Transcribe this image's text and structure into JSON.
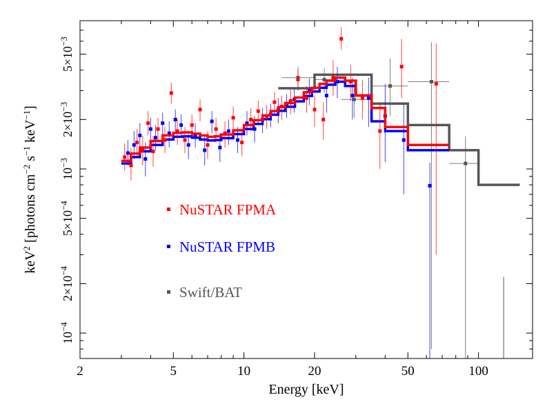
{
  "chart_data": {
    "type": "scatter",
    "title": "",
    "xlabel": "Energy [keV]",
    "ylabel_parts": [
      "keV",
      "2",
      " [photons cm",
      "−2",
      " s",
      "−1",
      " keV",
      "−1",
      "]"
    ],
    "xscale": "log",
    "yscale": "log",
    "xlim": [
      2,
      170
    ],
    "ylim": [
      7e-05,
      0.008
    ],
    "x_ticks": [
      {
        "value": 2,
        "label": "2"
      },
      {
        "value": 5,
        "label": "5"
      },
      {
        "value": 10,
        "label": "10"
      },
      {
        "value": 20,
        "label": "20"
      },
      {
        "value": 50,
        "label": "50"
      },
      {
        "value": 100,
        "label": "100"
      }
    ],
    "y_ticks": [
      {
        "value": 0.0001,
        "mant": "10",
        "exp": "−4"
      },
      {
        "value": 0.0002,
        "mant": "2×10",
        "exp": "−4"
      },
      {
        "value": 0.0005,
        "mant": "5×10",
        "exp": "−4"
      },
      {
        "value": 0.001,
        "mant": "10",
        "exp": "−3"
      },
      {
        "value": 0.002,
        "mant": "2×10",
        "exp": "−3"
      },
      {
        "value": 0.005,
        "mant": "5×10",
        "exp": "−3"
      }
    ],
    "legend_position": "middle-left",
    "series": [
      {
        "name": "NuSTAR FPMA",
        "color": "#ff0000",
        "model_step": [
          [
            3.0,
            0.00112
          ],
          [
            3.3,
            0.00124
          ],
          [
            3.6,
            0.00135
          ],
          [
            4.0,
            0.00148
          ],
          [
            4.5,
            0.0016
          ],
          [
            5.0,
            0.00166
          ],
          [
            5.5,
            0.00167
          ],
          [
            6.0,
            0.00164
          ],
          [
            6.5,
            0.0016
          ],
          [
            7.0,
            0.00157
          ],
          [
            7.5,
            0.00158
          ],
          [
            8.0,
            0.00162
          ],
          [
            9.0,
            0.00172
          ],
          [
            10.0,
            0.00185
          ],
          [
            11.0,
            0.00198
          ],
          [
            12.0,
            0.00212
          ],
          [
            13.0,
            0.00225
          ],
          [
            14.0,
            0.00238
          ],
          [
            15.0,
            0.00252
          ],
          [
            16.5,
            0.00272
          ],
          [
            18.0,
            0.00293
          ],
          [
            19.5,
            0.00312
          ],
          [
            21.0,
            0.0033
          ],
          [
            22.5,
            0.00345
          ],
          [
            24.5,
            0.0036
          ],
          [
            27.0,
            0.00345
          ],
          [
            30.0,
            0.0028
          ],
          [
            35.0,
            0.00235
          ],
          [
            40.0,
            0.0018
          ],
          [
            50.0,
            0.0014
          ],
          [
            75.0,
            0.0014
          ]
        ],
        "points": [
          {
            "x": 3.1,
            "y": 0.00118,
            "yerr": [
              0.0002,
              0.00025
            ]
          },
          {
            "x": 3.3,
            "y": 0.00105,
            "yerr": [
              0.0002,
              0.0003
            ]
          },
          {
            "x": 3.5,
            "y": 0.00145,
            "yerr": [
              0.00025,
              0.0003
            ]
          },
          {
            "x": 3.7,
            "y": 0.0013,
            "yerr": [
              0.00025,
              0.0003
            ]
          },
          {
            "x": 3.9,
            "y": 0.0019,
            "yerr": [
              0.0003,
              0.00035
            ]
          },
          {
            "x": 4.1,
            "y": 0.00128,
            "yerr": [
              0.00025,
              0.0003
            ]
          },
          {
            "x": 4.3,
            "y": 0.00175,
            "yerr": [
              0.0003,
              0.0003
            ]
          },
          {
            "x": 4.6,
            "y": 0.0015,
            "yerr": [
              0.00025,
              0.0003
            ]
          },
          {
            "x": 4.9,
            "y": 0.0029,
            "yerr": [
              0.0004,
              0.00045
            ]
          },
          {
            "x": 5.2,
            "y": 0.0017,
            "yerr": [
              0.0003,
              0.0003
            ]
          },
          {
            "x": 5.6,
            "y": 0.0015,
            "yerr": [
              0.00025,
              0.0003
            ]
          },
          {
            "x": 6.0,
            "y": 0.00185,
            "yerr": [
              0.0003,
              0.0003
            ]
          },
          {
            "x": 6.5,
            "y": 0.0023,
            "yerr": [
              0.00035,
              0.00035
            ]
          },
          {
            "x": 7.0,
            "y": 0.0014,
            "yerr": [
              0.00025,
              0.0003
            ]
          },
          {
            "x": 7.6,
            "y": 0.00175,
            "yerr": [
              0.0003,
              0.0003
            ]
          },
          {
            "x": 8.3,
            "y": 0.00165,
            "yerr": [
              0.0003,
              0.0003
            ]
          },
          {
            "x": 9.0,
            "y": 0.00205,
            "yerr": [
              0.0003,
              0.00035
            ]
          },
          {
            "x": 9.8,
            "y": 0.00145,
            "yerr": [
              0.00025,
              0.0003
            ]
          },
          {
            "x": 10.7,
            "y": 0.002,
            "yerr": [
              0.0003,
              0.00035
            ]
          },
          {
            "x": 11.5,
            "y": 0.00225,
            "yerr": [
              0.00035,
              0.00035
            ]
          },
          {
            "x": 12.5,
            "y": 0.0021,
            "yerr": [
              0.00035,
              0.00035
            ]
          },
          {
            "x": 13.5,
            "y": 0.00255,
            "yerr": [
              0.0004,
              0.0004
            ]
          },
          {
            "x": 14.5,
            "y": 0.0024,
            "yerr": [
              0.0004,
              0.0004
            ]
          },
          {
            "x": 15.8,
            "y": 0.0026,
            "yerr": [
              0.00045,
              0.00045
            ]
          },
          {
            "x": 17.0,
            "y": 0.0035,
            "yerr": [
              0.0005,
              0.00055
            ]
          },
          {
            "x": 18.5,
            "y": 0.0027,
            "yerr": [
              0.0005,
              0.0005
            ]
          },
          {
            "x": 20.0,
            "y": 0.0023,
            "yerr": [
              0.0005,
              0.0005
            ]
          },
          {
            "x": 21.8,
            "y": 0.002,
            "yerr": [
              0.0005,
              0.00055
            ]
          },
          {
            "x": 24.0,
            "y": 0.0036,
            "yerr": [
              0.0008,
              0.001
            ]
          },
          {
            "x": 26.0,
            "y": 0.0062,
            "yerr": [
              0.0009,
              0.0011
            ]
          },
          {
            "x": 28.5,
            "y": 0.0034,
            "yerr": [
              0.0008,
              0.0009
            ]
          },
          {
            "x": 32.0,
            "y": 0.0027,
            "yerr": [
              0.0007,
              0.0008
            ]
          },
          {
            "x": 38.0,
            "y": 0.0017,
            "yerr": [
              0.0007,
              0.0008
            ]
          },
          {
            "x": 47.0,
            "y": 0.0042,
            "yerr": [
              0.0015,
              0.002
            ]
          },
          {
            "x": 66.0,
            "y": 0.0033,
            "yerr": [
              0.003,
              0.0025
            ]
          }
        ]
      },
      {
        "name": "NuSTAR FPMB",
        "color": "#0000ff",
        "model_step": [
          [
            3.0,
            0.00108
          ],
          [
            3.3,
            0.00118
          ],
          [
            3.6,
            0.00128
          ],
          [
            4.0,
            0.0014
          ],
          [
            4.5,
            0.00151
          ],
          [
            5.0,
            0.00157
          ],
          [
            5.5,
            0.00158
          ],
          [
            6.0,
            0.00155
          ],
          [
            6.5,
            0.00151
          ],
          [
            7.0,
            0.00149
          ],
          [
            7.5,
            0.0015
          ],
          [
            8.0,
            0.00154
          ],
          [
            9.0,
            0.00163
          ],
          [
            10.0,
            0.00175
          ],
          [
            11.0,
            0.00188
          ],
          [
            12.0,
            0.00201
          ],
          [
            13.0,
            0.00214
          ],
          [
            14.0,
            0.00226
          ],
          [
            15.0,
            0.00239
          ],
          [
            16.5,
            0.00258
          ],
          [
            18.0,
            0.00278
          ],
          [
            19.5,
            0.00296
          ],
          [
            21.0,
            0.00312
          ],
          [
            22.5,
            0.00326
          ],
          [
            24.5,
            0.0034
          ],
          [
            27.0,
            0.0032
          ],
          [
            30.0,
            0.0028
          ],
          [
            35.0,
            0.00195
          ],
          [
            40.0,
            0.0017
          ],
          [
            50.0,
            0.0013
          ],
          [
            75.0,
            0.0013
          ]
        ],
        "points": [
          {
            "x": 3.2,
            "y": 0.00125,
            "yerr": [
              0.0002,
              0.00025
            ]
          },
          {
            "x": 3.4,
            "y": 0.0014,
            "yerr": [
              0.00025,
              0.0003
            ]
          },
          {
            "x": 3.6,
            "y": 0.0016,
            "yerr": [
              0.00025,
              0.0003
            ]
          },
          {
            "x": 3.8,
            "y": 0.00115,
            "yerr": [
              0.00025,
              0.0003
            ]
          },
          {
            "x": 4.0,
            "y": 0.00175,
            "yerr": [
              0.0003,
              0.0003
            ]
          },
          {
            "x": 4.2,
            "y": 0.00155,
            "yerr": [
              0.00025,
              0.0003
            ]
          },
          {
            "x": 4.5,
            "y": 0.0019,
            "yerr": [
              0.0003,
              0.0003
            ]
          },
          {
            "x": 4.8,
            "y": 0.00165,
            "yerr": [
              0.0003,
              0.0003
            ]
          },
          {
            "x": 5.1,
            "y": 0.002,
            "yerr": [
              0.0003,
              0.0003
            ]
          },
          {
            "x": 5.4,
            "y": 0.00185,
            "yerr": [
              0.0003,
              0.0003
            ]
          },
          {
            "x": 5.8,
            "y": 0.0014,
            "yerr": [
              0.00025,
              0.0003
            ]
          },
          {
            "x": 6.2,
            "y": 0.0016,
            "yerr": [
              0.00025,
              0.0003
            ]
          },
          {
            "x": 6.8,
            "y": 0.0013,
            "yerr": [
              0.00025,
              0.0003
            ]
          },
          {
            "x": 7.3,
            "y": 0.00195,
            "yerr": [
              0.0003,
              0.0003
            ]
          },
          {
            "x": 7.9,
            "y": 0.00135,
            "yerr": [
              0.00025,
              0.0003
            ]
          },
          {
            "x": 8.6,
            "y": 0.0017,
            "yerr": [
              0.0003,
              0.0003
            ]
          },
          {
            "x": 9.4,
            "y": 0.0015,
            "yerr": [
              0.00025,
              0.0003
            ]
          },
          {
            "x": 10.3,
            "y": 0.0019,
            "yerr": [
              0.0003,
              0.00035
            ]
          },
          {
            "x": 11.1,
            "y": 0.00175,
            "yerr": [
              0.0003,
              0.00035
            ]
          },
          {
            "x": 12.0,
            "y": 0.002,
            "yerr": [
              0.00035,
              0.00035
            ]
          },
          {
            "x": 13.0,
            "y": 0.00215,
            "yerr": [
              0.00035,
              0.00035
            ]
          },
          {
            "x": 14.0,
            "y": 0.0023,
            "yerr": [
              0.0004,
              0.0004
            ]
          },
          {
            "x": 15.2,
            "y": 0.00245,
            "yerr": [
              0.0004,
              0.0004
            ]
          },
          {
            "x": 16.4,
            "y": 0.00265,
            "yerr": [
              0.00045,
              0.00045
            ]
          },
          {
            "x": 19.0,
            "y": 0.003,
            "yerr": [
              0.00055,
              0.00055
            ]
          },
          {
            "x": 22.5,
            "y": 0.0028,
            "yerr": [
              0.0006,
              0.0006
            ]
          },
          {
            "x": 25.0,
            "y": 0.0034,
            "yerr": [
              0.0007,
              0.0008
            ]
          },
          {
            "x": 29.0,
            "y": 0.0028,
            "yerr": [
              0.0008,
              0.0008
            ]
          },
          {
            "x": 34.0,
            "y": 0.0027,
            "yerr": [
              0.0009,
              0.0009
            ]
          },
          {
            "x": 40.0,
            "y": 0.0021,
            "yerr": [
              0.001,
              0.0012
            ]
          },
          {
            "x": 48.0,
            "y": 0.0015,
            "yerr": [
              0.0008,
              0.001
            ]
          },
          {
            "x": 62.0,
            "y": 0.00079,
            "yerr": [
              0.00075,
              0.0003
            ]
          }
        ]
      },
      {
        "name": "Swift/BAT",
        "color": "#555555",
        "model_step": [
          [
            14.0,
            0.0031
          ],
          [
            17.5,
            0.0031
          ],
          [
            20.0,
            0.00375
          ],
          [
            29.0,
            0.00375
          ],
          [
            35.0,
            0.0025
          ],
          [
            50.0,
            0.00185
          ],
          [
            75.0,
            0.0013
          ],
          [
            100.0,
            0.0008
          ],
          [
            150.0,
            0.0008
          ]
        ],
        "points": [
          {
            "x": 17.0,
            "y": 0.0036,
            "xerr": [
              2.5,
              3.0
            ],
            "yerr": [
              0.0006,
              0.0006
            ]
          },
          {
            "x": 22.0,
            "y": 0.0035,
            "xerr": [
              2.0,
              3.0
            ],
            "yerr": [
              0.0006,
              0.0006
            ]
          },
          {
            "x": 29.5,
            "y": 0.00265,
            "xerr": [
              3.5,
              5.0
            ],
            "yerr": [
              0.0006,
              0.0007
            ]
          },
          {
            "x": 42.0,
            "y": 0.0032,
            "xerr": [
              7.0,
              8.0
            ],
            "yerr": [
              0.0011,
              0.0015
            ]
          },
          {
            "x": 63.0,
            "y": 0.0034,
            "xerr": [
              13.0,
              12.0
            ],
            "yerr": [
              0.00332,
              0.0025
            ]
          },
          {
            "x": 88.0,
            "y": 0.00108,
            "xerr": [
              13.0,
              12.0
            ],
            "yerr": [
              0.00105,
              0.0005
            ]
          }
        ],
        "upper_limit_x": 128.0,
        "upper_limit_top": 0.00022
      }
    ]
  }
}
